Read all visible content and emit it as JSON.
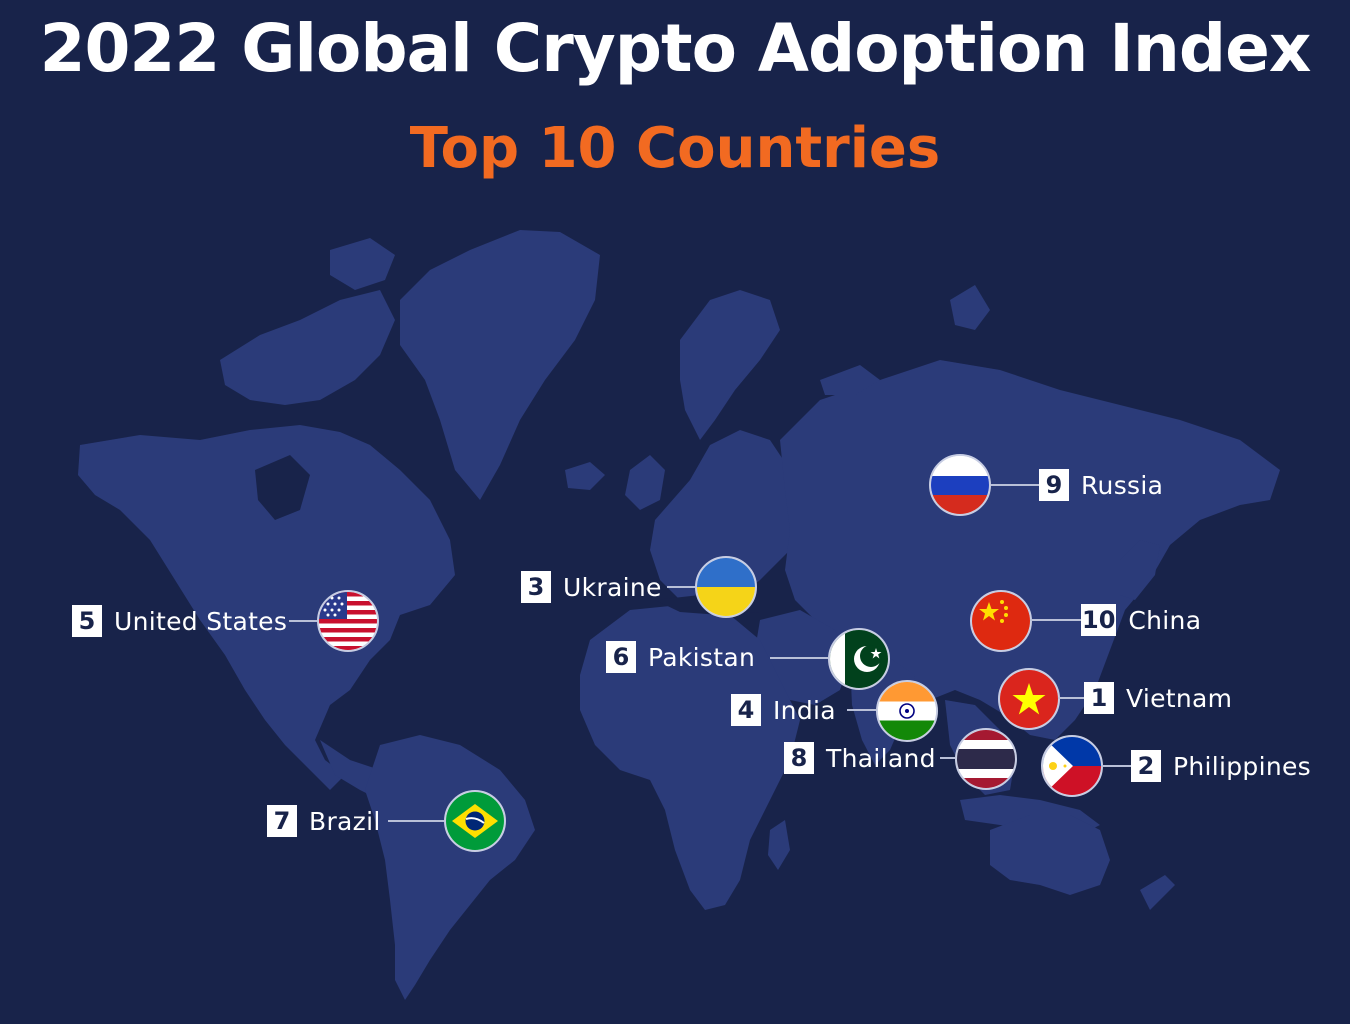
{
  "header": {
    "title": "2022 Global Crypto Adoption Index",
    "subtitle": "Top 10 Countries"
  },
  "colors": {
    "background": "#18234a",
    "landmass": "#2b3b79",
    "accent": "#f26a21",
    "text": "#ffffff"
  },
  "countries": [
    {
      "rank": "1",
      "name": "Vietnam",
      "flag": "vietnam-flag-icon"
    },
    {
      "rank": "2",
      "name": "Philippines",
      "flag": "philippines-flag-icon"
    },
    {
      "rank": "3",
      "name": "Ukraine",
      "flag": "ukraine-flag-icon"
    },
    {
      "rank": "4",
      "name": "India",
      "flag": "india-flag-icon"
    },
    {
      "rank": "5",
      "name": "United States",
      "flag": "united-states-flag-icon"
    },
    {
      "rank": "6",
      "name": "Pakistan",
      "flag": "pakistan-flag-icon"
    },
    {
      "rank": "7",
      "name": "Brazil",
      "flag": "brazil-flag-icon"
    },
    {
      "rank": "8",
      "name": "Thailand",
      "flag": "thailand-flag-icon"
    },
    {
      "rank": "9",
      "name": "Russia",
      "flag": "russia-flag-icon"
    },
    {
      "rank": "10",
      "name": "China",
      "flag": "china-flag-icon"
    }
  ]
}
